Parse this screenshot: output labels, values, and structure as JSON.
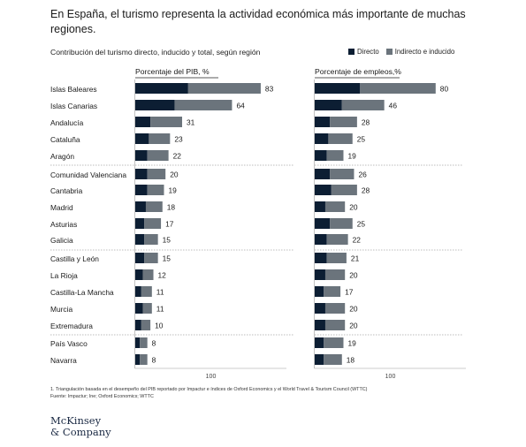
{
  "title": "En España, el turismo representa la actividad económica más importante de muchas regiones.",
  "subtitle": "Contribución del turismo directo, inducido y total, según región",
  "legend": {
    "direct": "Directo",
    "indirect": "Indirecto e inducido"
  },
  "colors": {
    "direct": "#0c1e33",
    "indirect": "#6b747c",
    "divider": "#a8a8a8",
    "axis": "#9a9a9a"
  },
  "footnote": {
    "line1": "1. Triangulación basada en el desempeño del PIB reportado por Impactur e índices de  Oxford Economics y el World Travel & Tourism Council (WTTC)",
    "line2": "Fuente: Impactur; Ine; Oxford Economics; WTTC"
  },
  "logo": {
    "line1": "McKinsey",
    "line2": "& Company"
  },
  "chart_data": [
    {
      "type": "bar",
      "orientation": "horizontal",
      "stacked": true,
      "title": "Porcentaje del PIB, %",
      "axis_tick_label": "100",
      "xlim": [
        0,
        100
      ],
      "categories": [
        "Islas Baleares",
        "Islas Canarias",
        "Andalucía",
        "Cataluña",
        "Aragón",
        "Comunidad Valenciana",
        "Cantabria",
        "Madrid",
        "Asturias",
        "Galicia",
        "Castilla y León",
        "La Rioja",
        "Castilla-La Mancha",
        "Murcia",
        "Extremadura",
        "País Vasco",
        "Navarra"
      ],
      "series": [
        {
          "name": "Directo",
          "values": [
            35,
            26,
            10,
            9,
            8,
            8,
            8,
            7,
            6,
            6,
            6,
            5,
            4,
            5,
            4,
            3,
            3
          ]
        },
        {
          "name": "Indirecto e inducido",
          "values": [
            48,
            38,
            21,
            14,
            14,
            12,
            11,
            11,
            11,
            9,
            9,
            7,
            7,
            6,
            6,
            5,
            5
          ]
        }
      ],
      "totals": [
        83,
        64,
        31,
        23,
        22,
        20,
        19,
        18,
        17,
        15,
        15,
        12,
        11,
        11,
        10,
        8,
        8
      ]
    },
    {
      "type": "bar",
      "orientation": "horizontal",
      "stacked": true,
      "title": "Porcentaje de empleos,%",
      "axis_tick_label": "100",
      "xlim": [
        0,
        100
      ],
      "categories": [
        "Islas Baleares",
        "Islas Canarias",
        "Andalucía",
        "Cataluña",
        "Aragón",
        "Comunidad Valenciana",
        "Cantabria",
        "Madrid",
        "Asturias",
        "Galicia",
        "Castilla y León",
        "La Rioja",
        "Castilla-La Mancha",
        "Murcia",
        "Extremadura",
        "País Vasco",
        "Navarra"
      ],
      "series": [
        {
          "name": "Directo",
          "values": [
            30,
            18,
            10,
            9,
            8,
            10,
            11,
            7,
            10,
            8,
            8,
            7,
            6,
            7,
            7,
            6,
            6
          ]
        },
        {
          "name": "Indirecto e inducido",
          "values": [
            50,
            28,
            18,
            16,
            11,
            16,
            17,
            13,
            15,
            14,
            13,
            13,
            11,
            13,
            13,
            13,
            12
          ]
        }
      ],
      "totals": [
        80,
        46,
        28,
        25,
        19,
        26,
        28,
        20,
        25,
        22,
        21,
        20,
        17,
        20,
        20,
        19,
        18
      ]
    }
  ]
}
